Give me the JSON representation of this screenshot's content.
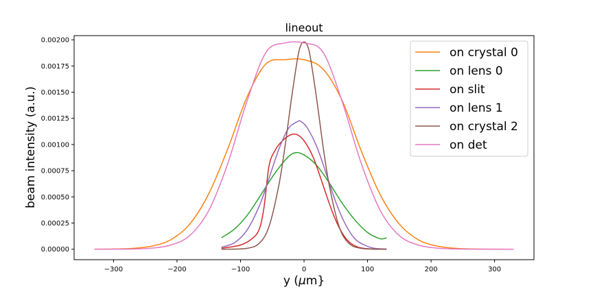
{
  "chart_data": {
    "type": "line",
    "title": "lineout",
    "xlabel": "y ($\\mu$m}",
    "ylabel": "beam intensity (a.u.)",
    "xlim": [
      -362,
      362
    ],
    "ylim": [
      -0.0001,
      0.00204
    ],
    "xticks": [
      -300,
      -200,
      -100,
      0,
      100,
      200,
      300
    ],
    "xtick_labels": [
      "−300",
      "−200",
      "−100",
      "0",
      "100",
      "200",
      "300"
    ],
    "yticks": [
      0,
      0.00025,
      0.0005,
      0.00075,
      0.001,
      0.00125,
      0.0015,
      0.00175,
      0.002
    ],
    "ytick_labels": [
      "0.00000",
      "0.00025",
      "0.00050",
      "0.00075",
      "0.00100",
      "0.00125",
      "0.00150",
      "0.00175",
      "0.00200"
    ],
    "grid": false,
    "legend_position": "top-right",
    "series": [
      {
        "name": "on crystal 0",
        "color": "#ff7f0e",
        "x": [
          -330,
          -300,
          -270,
          -240,
          -210,
          -180,
          -150,
          -120,
          -90,
          -60,
          -30,
          0,
          30,
          60,
          90,
          120,
          150,
          180,
          210,
          240,
          270,
          300,
          330
        ],
        "y": [
          5e-07,
          2e-06,
          8e-06,
          2.9e-05,
          9e-05,
          0.00024,
          0.00053,
          0.00096,
          0.00145,
          0.00177,
          0.00181,
          0.00181,
          0.00172,
          0.00142,
          0.00094,
          0.00052,
          0.00024,
          9e-05,
          2.9e-05,
          8e-06,
          2e-06,
          5e-07,
          1e-07
        ]
      },
      {
        "name": "on lens 0",
        "color": "#2ca02c",
        "x": [
          -130,
          -110,
          -90,
          -70,
          -50,
          -30,
          -15,
          0,
          20,
          40,
          60,
          80,
          100,
          120,
          130
        ],
        "y": [
          0.00011,
          0.00019,
          0.00032,
          0.0005,
          0.00069,
          0.00085,
          0.00092,
          0.0009,
          0.0008,
          0.00063,
          0.00044,
          0.00028,
          0.00016,
          0.0001,
          0.00011
        ]
      },
      {
        "name": "on slit",
        "color": "#d62728",
        "x": [
          -130,
          -100,
          -80,
          -70,
          -63,
          -55,
          -45,
          -35,
          -25,
          -15,
          -5,
          5,
          15,
          25,
          35,
          45,
          55,
          65,
          75,
          85,
          95,
          105,
          115,
          130
        ],
        "y": [
          1e-05,
          4e-05,
          0.00011,
          0.0002,
          0.0004,
          0.0008,
          0.00095,
          0.00103,
          0.00108,
          0.0011,
          0.00107,
          0.00099,
          0.00087,
          0.0007,
          0.00052,
          0.00035,
          0.00021,
          0.00011,
          5e-05,
          2e-05,
          8e-06,
          3e-06,
          1e-06,
          2e-07
        ]
      },
      {
        "name": "on lens 1",
        "color": "#9467bd",
        "x": [
          -130,
          -110,
          -90,
          -70,
          -55,
          -40,
          -25,
          -10,
          -5,
          5,
          20,
          35,
          50,
          65,
          80,
          95,
          110,
          130
        ],
        "y": [
          2e-05,
          6e-05,
          0.00018,
          0.00042,
          0.00068,
          0.00095,
          0.00115,
          0.00122,
          0.00122,
          0.00116,
          0.00098,
          0.00072,
          0.00045,
          0.00024,
          0.0001,
          4e-05,
          1e-05,
          2e-06
        ]
      },
      {
        "name": "on crystal 2",
        "color": "#8c564b",
        "x": [
          -130,
          -90,
          -70,
          -55,
          -40,
          -30,
          -20,
          -10,
          -5,
          0,
          5,
          10,
          20,
          30,
          40,
          55,
          70,
          90,
          130
        ],
        "y": [
          1e-07,
          8e-06,
          6e-05,
          0.00022,
          0.0006,
          0.00098,
          0.00143,
          0.00183,
          0.00195,
          0.00198,
          0.00195,
          0.00183,
          0.00143,
          0.00098,
          0.0006,
          0.00022,
          6e-05,
          8e-06,
          1e-07
        ]
      },
      {
        "name": "on det",
        "color": "#e377c2",
        "x": [
          -330,
          -300,
          -270,
          -240,
          -210,
          -180,
          -150,
          -120,
          -90,
          -60,
          -30,
          0,
          30,
          60,
          90,
          120,
          150,
          180,
          210,
          240,
          270,
          300,
          330
        ],
        "y": [
          1e-07,
          5e-07,
          2e-06,
          1e-05,
          4e-05,
          0.00013,
          0.00037,
          0.00082,
          0.00141,
          0.00188,
          0.00197,
          0.00197,
          0.00188,
          0.00141,
          0.00082,
          0.00037,
          0.00013,
          4e-05,
          1e-05,
          2e-06,
          5e-07,
          1e-07,
          1e-07
        ]
      }
    ]
  }
}
